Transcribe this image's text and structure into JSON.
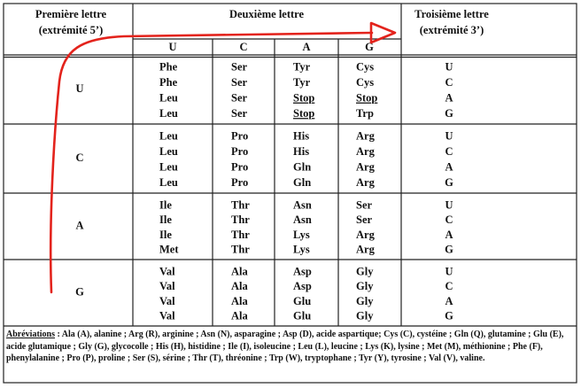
{
  "header": {
    "first": [
      "Première lettre",
      "(extrémité 5’)"
    ],
    "second": "Deuxième lettre",
    "third": [
      "Troisième lettre",
      "(extrémité 3’)"
    ]
  },
  "second_letters": [
    "U",
    "C",
    "A",
    "G"
  ],
  "blocks": [
    {
      "first": "U",
      "rows": [
        {
          "aa": [
            "Phe",
            "Ser",
            "Tyr",
            "Cys"
          ],
          "third": "U"
        },
        {
          "aa": [
            "Phe",
            "Ser",
            "Tyr",
            "Cys"
          ],
          "third": "C"
        },
        {
          "aa": [
            "Leu",
            "Ser",
            "Stop",
            "Stop"
          ],
          "third": "A"
        },
        {
          "aa": [
            "Leu",
            "Ser",
            "Stop",
            "Trp"
          ],
          "third": "G"
        }
      ]
    },
    {
      "first": "C",
      "rows": [
        {
          "aa": [
            "Leu",
            "Pro",
            "His",
            "Arg"
          ],
          "third": "U"
        },
        {
          "aa": [
            "Leu",
            "Pro",
            "His",
            "Arg"
          ],
          "third": "C"
        },
        {
          "aa": [
            "Leu",
            "Pro",
            "Gln",
            "Arg"
          ],
          "third": "A"
        },
        {
          "aa": [
            "Leu",
            "Pro",
            "Gln",
            "Arg"
          ],
          "third": "G"
        }
      ]
    },
    {
      "first": "A",
      "rows": [
        {
          "aa": [
            "Ile",
            "Thr",
            "Asn",
            "Ser"
          ],
          "third": "U"
        },
        {
          "aa": [
            "Ile",
            "Thr",
            "Asn",
            "Ser"
          ],
          "third": "C"
        },
        {
          "aa": [
            "Ile",
            "Thr",
            "Lys",
            "Arg"
          ],
          "third": "A"
        },
        {
          "aa": [
            "Met",
            "Thr",
            "Lys",
            "Arg"
          ],
          "third": "G"
        }
      ]
    },
    {
      "first": "G",
      "rows": [
        {
          "aa": [
            "Val",
            "Ala",
            "Asp",
            "Gly"
          ],
          "third": "U"
        },
        {
          "aa": [
            "Val",
            "Ala",
            "Asp",
            "Gly"
          ],
          "third": "C"
        },
        {
          "aa": [
            "Val",
            "Ala",
            "Glu",
            "Gly"
          ],
          "third": "A"
        },
        {
          "aa": [
            "Val",
            "Ala",
            "Glu",
            "Gly"
          ],
          "third": "G"
        }
      ]
    }
  ],
  "abbreviations": {
    "label": "Abréviations",
    "text": ": Ala (A), alanine ; Arg (R), arginine ; Asn (N), asparagine ; Asp (D), acide aspartique; Cys (C), cystéine ; Gln (Q), glutamine ; Glu (E), acide glutamique ; Gly (G), glycocolle ; His (H), histidine ; Ile (I), isoleucine ; Leu (L), leucine ; Lys (K), lysine ; Met (M), méthionine ; Phe (F), phenylalanine ; Pro (P), proline ; Ser (S), sérine ; Thr (T), thréonine ; Trp (W), tryptophane ; Tyr (Y), tyrosine ; Val (V), valine."
  }
}
